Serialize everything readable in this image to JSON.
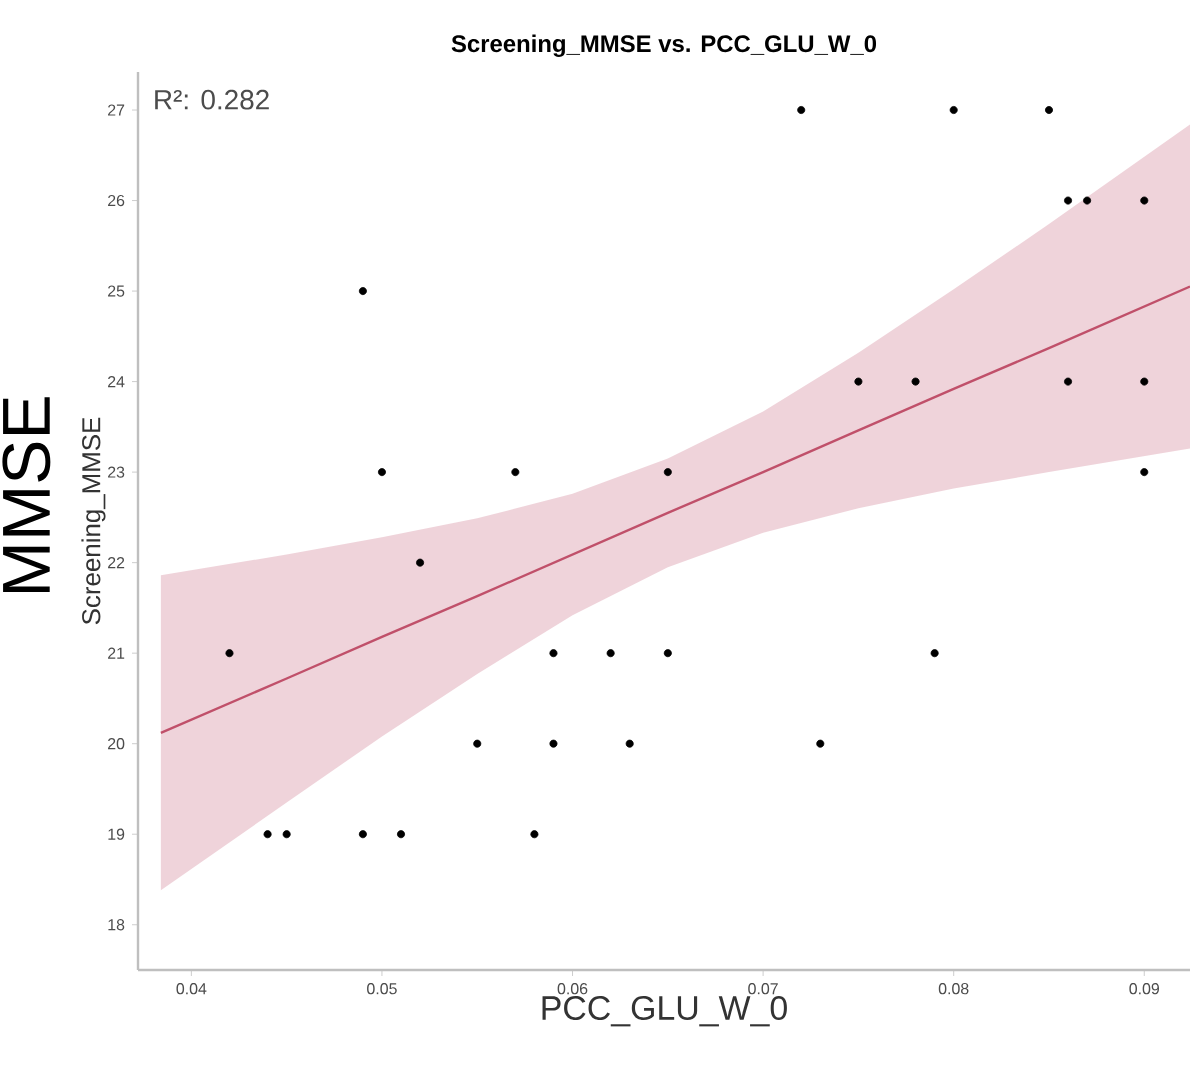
{
  "chart_data": {
    "type": "scatter",
    "title": "Screening_MMSE vs. PCC_GLU_W_0",
    "xlabel": "PCC_GLU_W_0",
    "ylabel": "Screening_MMSE",
    "annotations": [
      "R²: 0.282",
      "MMSE"
    ],
    "xlim": [
      0.0372,
      0.0924
    ],
    "ylim": [
      17.5,
      27.42
    ],
    "xticks": [
      0.04,
      0.05,
      0.06,
      0.07,
      0.08,
      0.09
    ],
    "yticks": [
      18,
      19,
      20,
      21,
      22,
      23,
      24,
      25,
      26,
      27
    ],
    "grid": false,
    "series": [
      {
        "marker": "circle",
        "color": "#000000",
        "x": [
          0.042,
          0.044,
          0.045,
          0.049,
          0.049,
          0.05,
          0.051,
          0.052,
          0.055,
          0.057,
          0.058,
          0.059,
          0.059,
          0.062,
          0.063,
          0.065,
          0.065,
          0.072,
          0.073,
          0.075,
          0.078,
          0.079,
          0.08,
          0.085,
          0.086,
          0.086,
          0.087,
          0.09,
          0.09,
          0.09
        ],
        "values": [
          21,
          19,
          19,
          19,
          25,
          23,
          19,
          22,
          20,
          23,
          19,
          21,
          20,
          21,
          20,
          23,
          21,
          27,
          20,
          24,
          24,
          21,
          27,
          27,
          26,
          24,
          26,
          26,
          24,
          23
        ]
      },
      {
        "type": "line",
        "marker": "none",
        "color": "#c0506a",
        "x": [
          0.0384,
          0.045,
          0.05,
          0.055,
          0.06,
          0.065,
          0.07,
          0.075,
          0.08,
          0.085,
          0.0924
        ],
        "values": [
          20.12,
          20.72,
          21.18,
          21.63,
          22.09,
          22.55,
          23.0,
          23.46,
          23.92,
          24.37,
          25.05
        ],
        "lower": [
          18.38,
          19.35,
          20.08,
          20.77,
          21.42,
          21.95,
          22.33,
          22.6,
          22.82,
          23.0,
          23.26
        ],
        "upper": [
          21.86,
          22.09,
          22.28,
          22.49,
          22.76,
          23.15,
          23.67,
          24.32,
          25.02,
          25.74,
          26.84
        ]
      }
    ]
  }
}
